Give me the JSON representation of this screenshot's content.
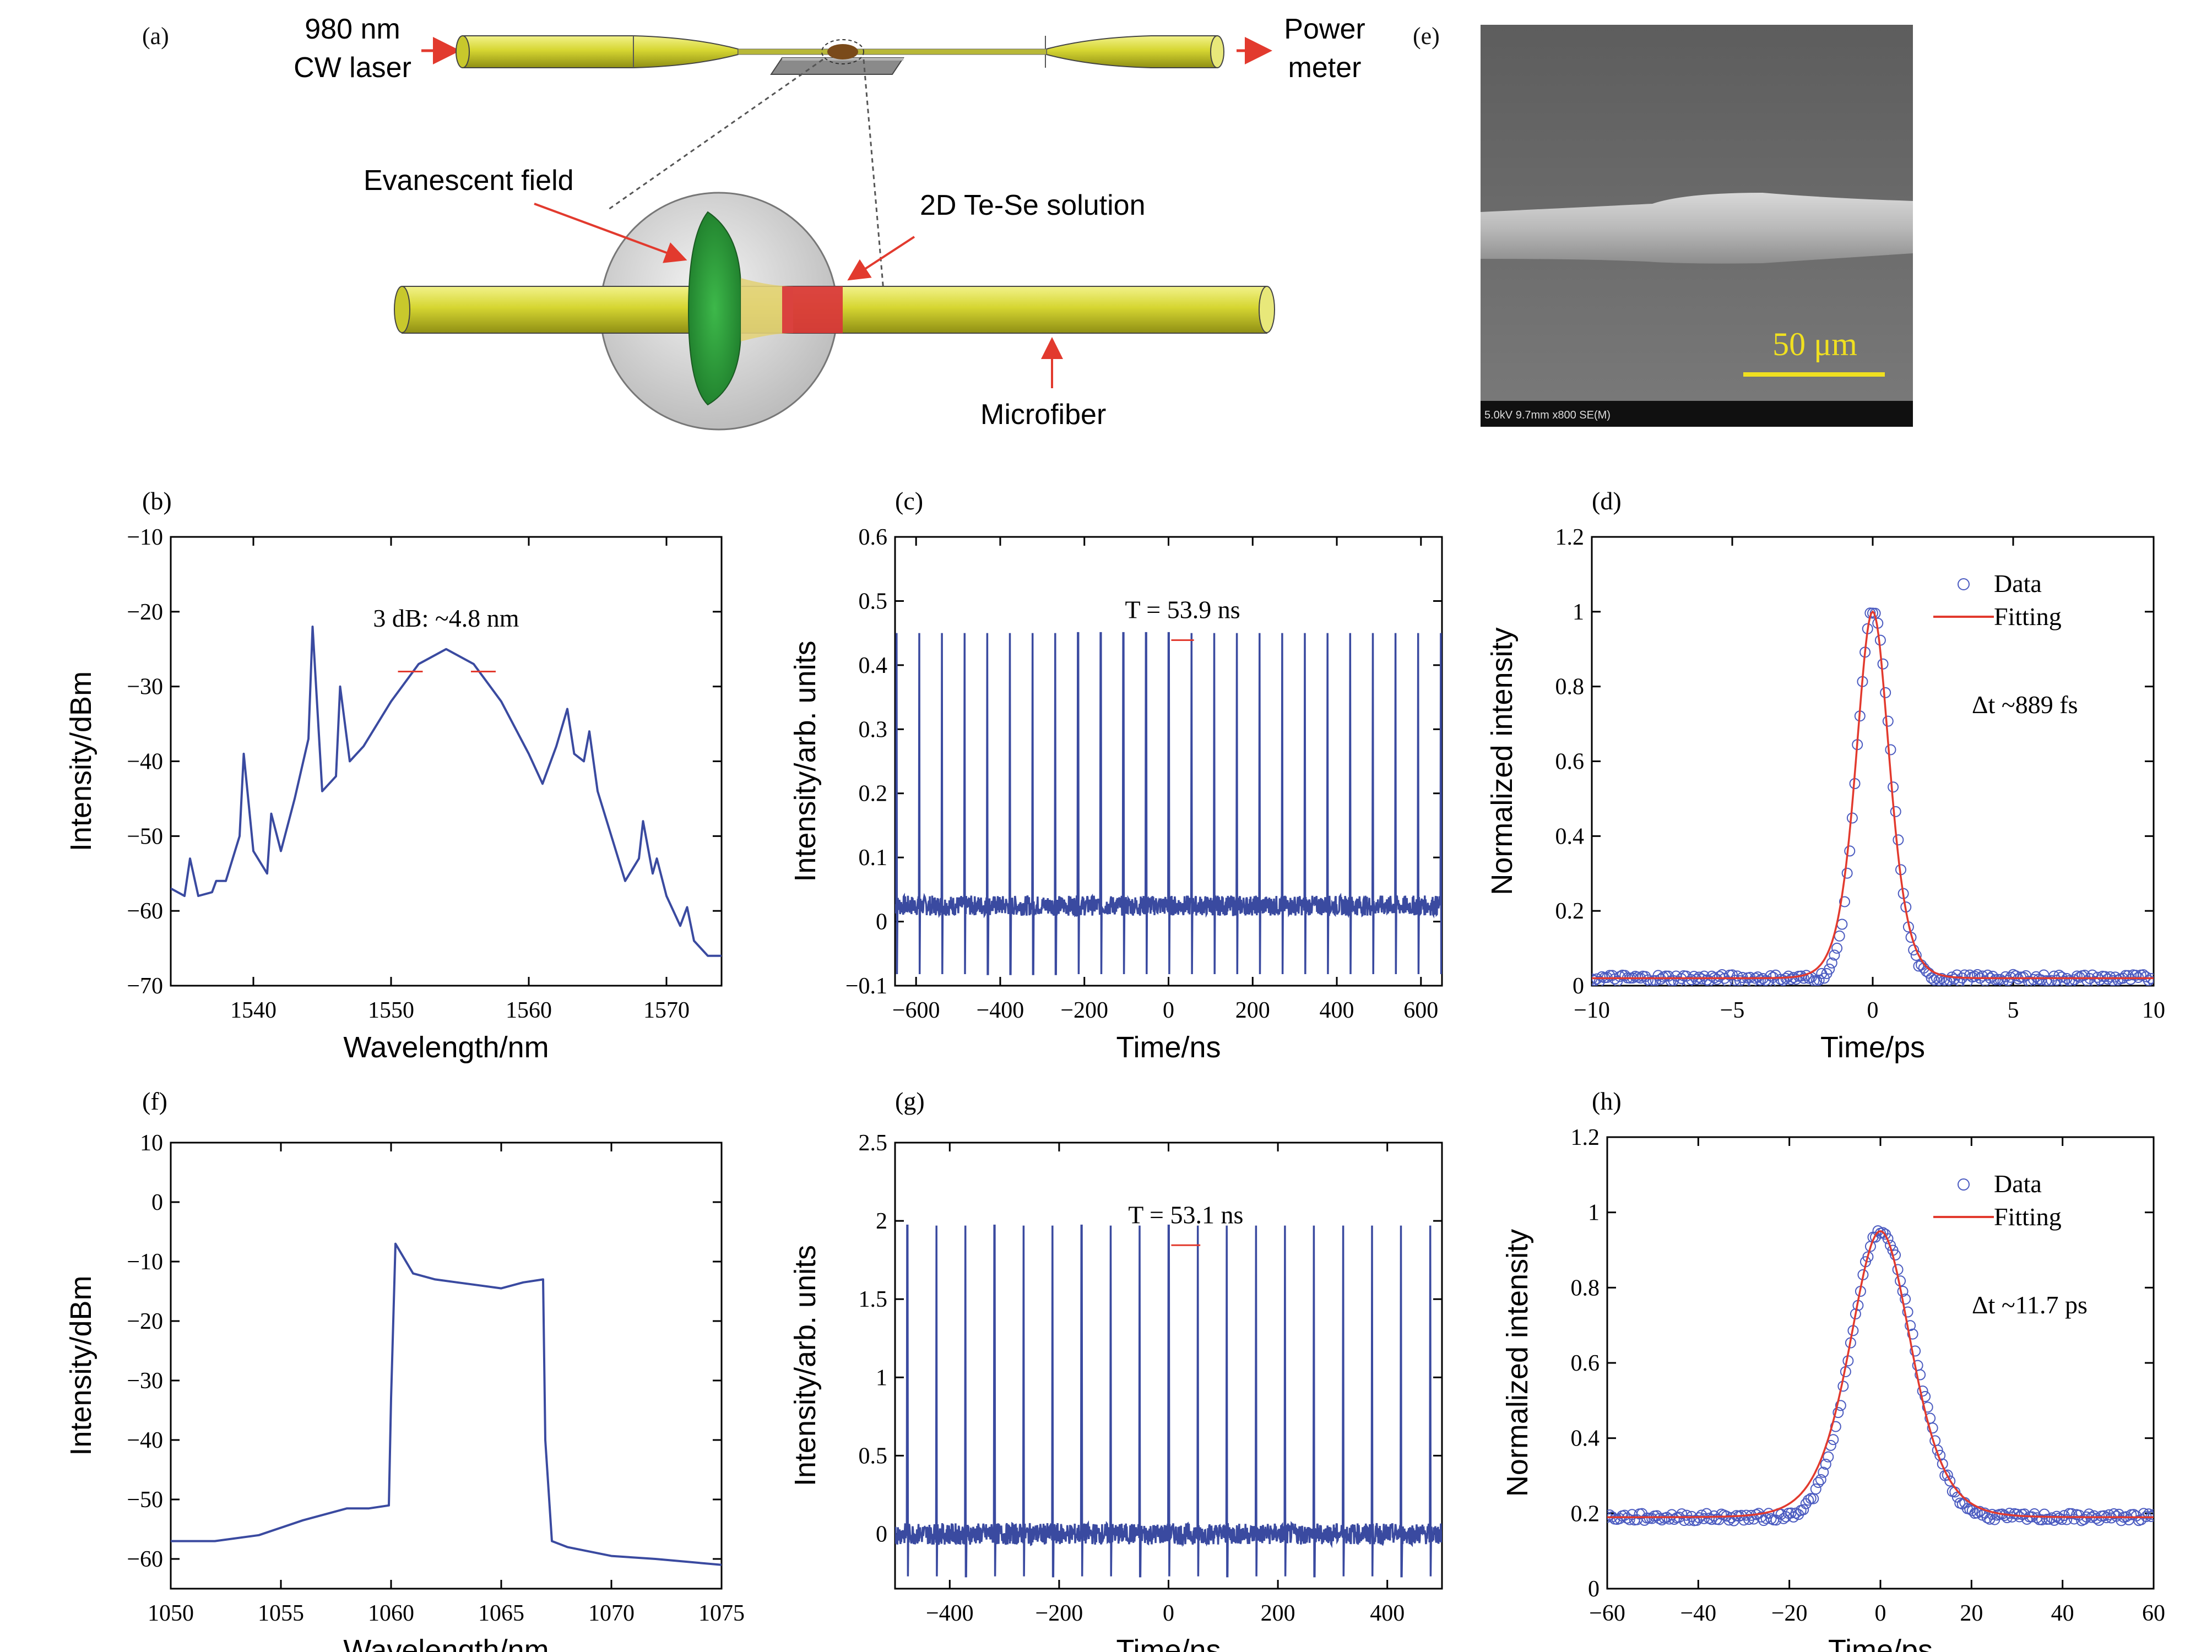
{
  "panels": {
    "a": {
      "label": "(a)",
      "laser": "980 nm",
      "laser2": "CW laser",
      "meter": "Power",
      "meter2": "meter",
      "evanescent": "Evanescent field",
      "solution": "2D Te-Se solution",
      "microfiber": "Microfiber"
    },
    "e": {
      "label": "(e)",
      "scale": "50 μm",
      "info": "5.0kV 9.7mm x800 SE(M)"
    }
  },
  "colors": {
    "data_line": "#3a4aa0",
    "fit_line": "#e23a2e",
    "fiber": "#d4d43a",
    "field": "#2e9a3a",
    "coating": "#d9353a"
  },
  "chart_data": [
    {
      "panel": "(b)",
      "type": "line",
      "xlabel": "Wavelength/nm",
      "ylabel": "Intensity/dBm",
      "xlim": [
        1534,
        1574
      ],
      "ylim": [
        -70,
        -10
      ],
      "xticks": [
        1540,
        1550,
        1560,
        1570
      ],
      "yticks": [
        -70,
        -60,
        -50,
        -40,
        -30,
        -20,
        -10
      ],
      "annotation": "3 dB: ~4.8 nm",
      "series": [
        {
          "x": [
            1534,
            1535,
            1535.4,
            1536,
            1537,
            1537.3,
            1538,
            1539,
            1539.3,
            1540,
            1541,
            1541.3,
            1542,
            1543,
            1544,
            1544.3,
            1545,
            1546,
            1546.3,
            1547,
            1548,
            1550,
            1552,
            1554,
            1556,
            1558,
            1560,
            1561,
            1562,
            1562.8,
            1563.3,
            1564,
            1564.4,
            1565,
            1566,
            1567,
            1568,
            1568.3,
            1569,
            1569.3,
            1570,
            1571,
            1571.5,
            1572,
            1573,
            1574
          ],
          "y": [
            -57,
            -58,
            -53,
            -58,
            -57.5,
            -56,
            -56,
            -50,
            -39,
            -52,
            -55,
            -47,
            -52,
            -45,
            -37,
            -22,
            -44,
            -42,
            -30,
            -40,
            -38,
            -32,
            -27,
            -25,
            -27,
            -32,
            -39,
            -43,
            -38,
            -33,
            -39,
            -40,
            -36,
            -44,
            -50,
            -56,
            -53,
            -48,
            -55,
            -53,
            -58,
            -62,
            -59.5,
            -64,
            -66,
            -66
          ]
        }
      ]
    },
    {
      "panel": "(c)",
      "type": "line",
      "xlabel": "Time/ns",
      "ylabel": "Intensity/arb. units",
      "xlim": [
        -650,
        650
      ],
      "ylim": [
        -0.1,
        0.6
      ],
      "xticks": [
        -600,
        -400,
        -200,
        0,
        200,
        400,
        600
      ],
      "yticks": [
        -0.1,
        0,
        0.1,
        0.2,
        0.3,
        0.4,
        0.5,
        0.6
      ],
      "annotation": "T = 53.9 ns",
      "period_ns": 53.9,
      "peak": 0.45,
      "baseline": 0.025
    },
    {
      "panel": "(d)",
      "type": "scatter",
      "xlabel": "Time/ps",
      "ylabel": "Normalized intensity",
      "xlim": [
        -10,
        10
      ],
      "ylim": [
        0,
        1.2
      ],
      "xticks": [
        -10,
        -5,
        0,
        5,
        10
      ],
      "yticks": [
        0,
        0.2,
        0.4,
        0.6,
        0.8,
        1.0,
        1.2
      ],
      "legend": [
        "Data",
        "Fitting"
      ],
      "annotation": "Δt ~889 fs",
      "fit_peak": 1.0,
      "fit_fwhm_ps": 1.4,
      "baseline": 0.02
    },
    {
      "panel": "(f)",
      "type": "line",
      "xlabel": "Wavelength/nm",
      "ylabel": "Intensity/dBm",
      "xlim": [
        1050,
        1075
      ],
      "ylim": [
        -65,
        10
      ],
      "xticks": [
        1050,
        1055,
        1060,
        1065,
        1070,
        1075
      ],
      "yticks": [
        -60,
        -50,
        -40,
        -30,
        -20,
        -10,
        0,
        10
      ],
      "series": [
        {
          "x": [
            1050,
            1052,
            1054,
            1056,
            1058,
            1059,
            1059.9,
            1060,
            1060.2,
            1061,
            1062,
            1063,
            1064,
            1065,
            1066,
            1066.9,
            1067,
            1067.3,
            1068,
            1070,
            1072,
            1075
          ],
          "y": [
            -57,
            -57,
            -56,
            -53.5,
            -51.5,
            -51.5,
            -51,
            -33,
            -7,
            -12,
            -13,
            -13.5,
            -14,
            -14.5,
            -13.5,
            -13,
            -40,
            -57,
            -58,
            -59.5,
            -60,
            -61
          ]
        }
      ]
    },
    {
      "panel": "(g)",
      "type": "line",
      "xlabel": "Time/ns",
      "ylabel": "Intensity/arb. units",
      "xlim": [
        -500,
        500
      ],
      "ylim": [
        -0.35,
        2.5
      ],
      "xticks": [
        -400,
        -200,
        0,
        200,
        400
      ],
      "yticks": [
        0,
        0.5,
        1.0,
        1.5,
        2.0,
        2.5
      ],
      "annotation": "T = 53.1 ns",
      "period_ns": 53.1,
      "peak": 1.97,
      "baseline": 0
    },
    {
      "panel": "(h)",
      "type": "scatter",
      "xlabel": "Time/ps",
      "ylabel": "Normalized intensity",
      "xlim": [
        -60,
        60
      ],
      "ylim": [
        0,
        1.2
      ],
      "xticks": [
        -60,
        -40,
        -20,
        0,
        20,
        40,
        60
      ],
      "yticks": [
        0,
        0.2,
        0.4,
        0.6,
        0.8,
        1.0,
        1.2
      ],
      "legend": [
        "Data",
        "Fitting"
      ],
      "annotation": "Δt ~11.7 ps",
      "fit_peak": 0.95,
      "fit_fwhm_ps": 16,
      "baseline": 0.19
    }
  ]
}
